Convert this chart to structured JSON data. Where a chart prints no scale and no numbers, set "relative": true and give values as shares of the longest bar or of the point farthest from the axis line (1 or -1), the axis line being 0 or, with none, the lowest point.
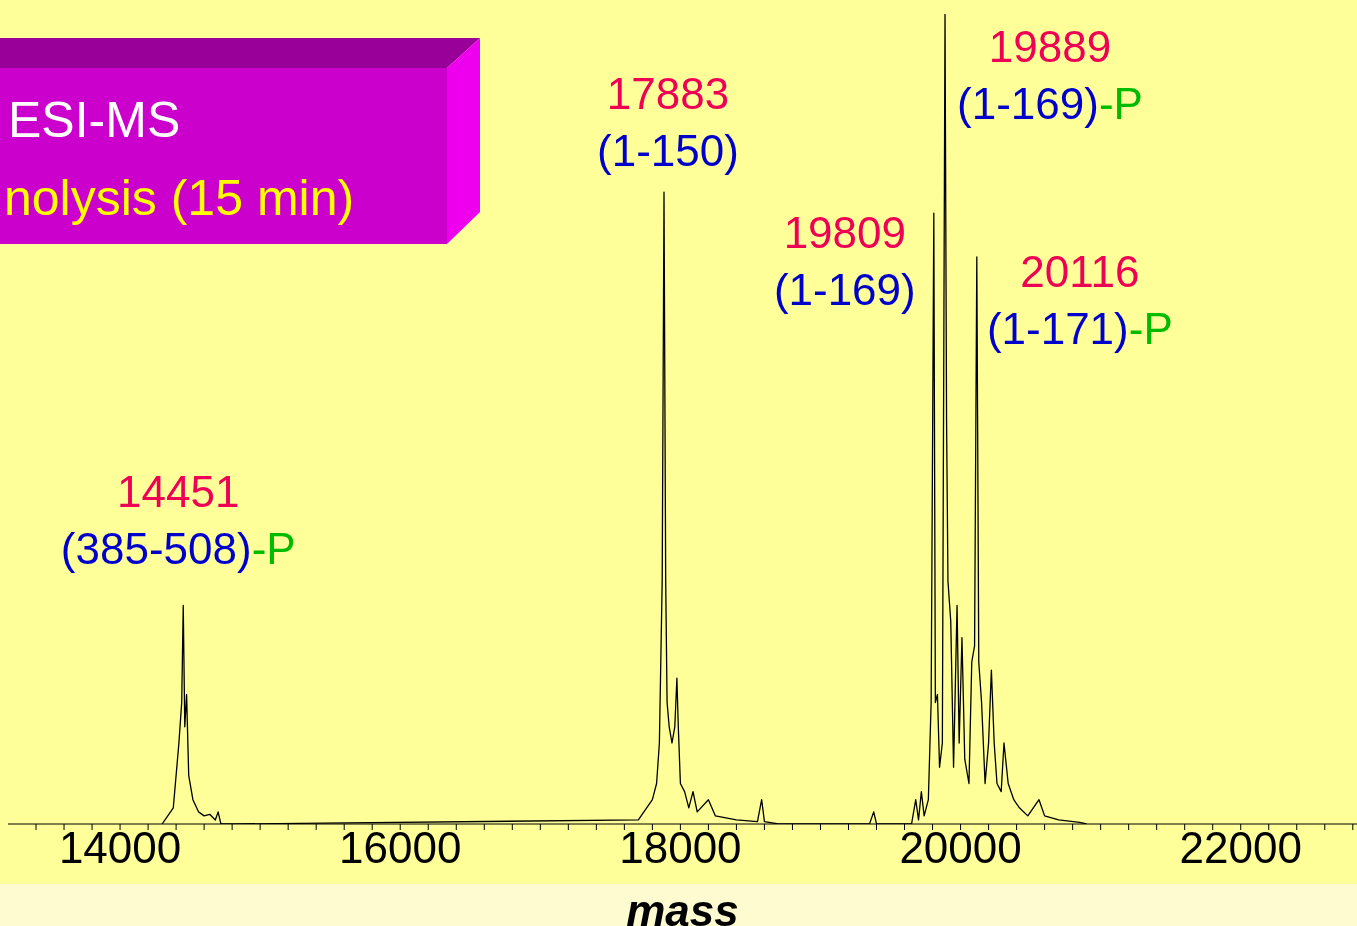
{
  "chart_data": {
    "type": "line",
    "title": "ESI-MS",
    "subtitle": "nolysis (15 min)",
    "xlabel": "mass",
    "relative": true,
    "marker": "none",
    "xlim": [
      13200,
      22830
    ],
    "xticks": [
      {
        "value": 13400,
        "label": null
      },
      {
        "value": 13600,
        "label": null
      },
      {
        "value": 13800,
        "label": null
      },
      14000,
      {
        "value": 14200,
        "label": null
      },
      {
        "value": 14400,
        "label": null
      },
      {
        "value": 14600,
        "label": null
      },
      {
        "value": 14800,
        "label": null
      },
      {
        "value": 15000,
        "label": null
      },
      {
        "value": 15200,
        "label": null
      },
      {
        "value": 15400,
        "label": null
      },
      {
        "value": 15600,
        "label": null
      },
      {
        "value": 15800,
        "label": null
      },
      16000,
      {
        "value": 16200,
        "label": null
      },
      {
        "value": 16400,
        "label": null
      },
      {
        "value": 16600,
        "label": null
      },
      {
        "value": 16800,
        "label": null
      },
      {
        "value": 17000,
        "label": null
      },
      {
        "value": 17200,
        "label": null
      },
      {
        "value": 17400,
        "label": null
      },
      {
        "value": 17600,
        "label": null
      },
      {
        "value": 17800,
        "label": null
      },
      18000,
      {
        "value": 18200,
        "label": null
      },
      {
        "value": 18400,
        "label": null
      },
      {
        "value": 18600,
        "label": null
      },
      {
        "value": 18800,
        "label": null
      },
      {
        "value": 19000,
        "label": null
      },
      {
        "value": 19200,
        "label": null
      },
      {
        "value": 19400,
        "label": null
      },
      {
        "value": 19600,
        "label": null
      },
      {
        "value": 19800,
        "label": null
      },
      20000,
      {
        "value": 20200,
        "label": null
      },
      {
        "value": 20400,
        "label": null
      },
      {
        "value": 20600,
        "label": null
      },
      {
        "value": 20800,
        "label": null
      },
      {
        "value": 21000,
        "label": null
      },
      {
        "value": 21200,
        "label": null
      },
      {
        "value": 21400,
        "label": null
      },
      {
        "value": 21600,
        "label": null
      },
      {
        "value": 21800,
        "label": null
      },
      22000,
      {
        "value": 22200,
        "label": null
      },
      {
        "value": 22400,
        "label": null
      },
      {
        "value": 22600,
        "label": null
      },
      {
        "value": 22800,
        "label": null
      }
    ],
    "series": [
      {
        "color": "#000000",
        "x": [
          14300,
          14380,
          14420,
          14440,
          14451,
          14462,
          14475,
          14490,
          14520,
          14560,
          14600,
          14640,
          14680,
          14700,
          14720,
          14800,
          17700,
          17800,
          17830,
          17850,
          17870,
          17883,
          17895,
          17905,
          17920,
          17940,
          17960,
          17975,
          17985,
          18000,
          18030,
          18060,
          18090,
          18120,
          18200,
          18250,
          18400,
          18550,
          18580,
          18600,
          18700,
          19350,
          19380,
          19400,
          19650,
          19680,
          19700,
          19720,
          19740,
          19770,
          19790,
          19809,
          19820,
          19835,
          19850,
          19870,
          19889,
          19900,
          19910,
          19930,
          19950,
          19975,
          19990,
          20010,
          20030,
          20060,
          20080,
          20100,
          20116,
          20130,
          20150,
          20175,
          20200,
          20220,
          20240,
          20260,
          20290,
          20310,
          20340,
          20380,
          20420,
          20480,
          20560,
          20600,
          20700,
          20850,
          20900
        ],
        "values": [
          0,
          0.02,
          0.1,
          0.15,
          0.27,
          0.12,
          0.16,
          0.06,
          0.03,
          0.015,
          0.01,
          0.012,
          0.005,
          0.015,
          0,
          0,
          0.005,
          0.03,
          0.05,
          0.1,
          0.3,
          0.78,
          0.3,
          0.15,
          0.12,
          0.1,
          0.12,
          0.18,
          0.12,
          0.05,
          0.04,
          0.02,
          0.04,
          0.015,
          0.03,
          0.01,
          0.005,
          0.003,
          0.03,
          0.003,
          0,
          0,
          0.015,
          0,
          0,
          0.03,
          0.005,
          0.04,
          0.01,
          0.03,
          0.15,
          0.754,
          0.15,
          0.16,
          0.07,
          0.1,
          1,
          0.5,
          0.3,
          0.25,
          0.07,
          0.27,
          0.1,
          0.23,
          0.08,
          0.05,
          0.2,
          0.22,
          0.7,
          0.2,
          0.15,
          0.05,
          0.1,
          0.19,
          0.1,
          0.05,
          0.04,
          0.1,
          0.05,
          0.03,
          0.02,
          0.01,
          0.03,
          0.01,
          0.005,
          0.002,
          0
        ]
      }
    ],
    "annotations": [
      {
        "text": "14451",
        "x": 14451,
        "y": 0.27
      },
      {
        "text": "(385-508)-P",
        "x": 14451,
        "y": 0.27
      },
      {
        "text": "17883",
        "x": 17883,
        "y": 0.78
      },
      {
        "text": "(1-150)",
        "x": 17883,
        "y": 0.78
      },
      {
        "text": "19809",
        "x": 19809,
        "y": 0.754
      },
      {
        "text": "(1-169)",
        "x": 19809,
        "y": 0.754
      },
      {
        "text": "19889",
        "x": 19889,
        "y": 1
      },
      {
        "text": "(1-169)-P",
        "x": 19889,
        "y": 1
      },
      {
        "text": "20116",
        "x": 20116,
        "y": 0.7
      },
      {
        "text": "(1-171)-P",
        "x": 20116,
        "y": 0.7
      }
    ]
  }
}
